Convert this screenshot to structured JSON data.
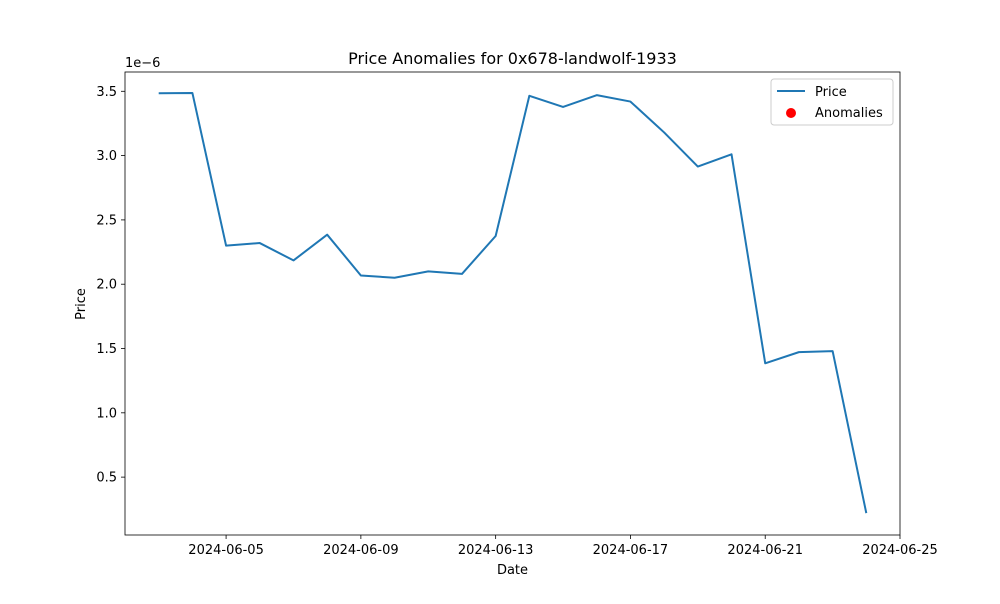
{
  "chart_data": {
    "type": "line",
    "title": "Price Anomalies for 0x678-landwolf-1933",
    "xlabel": "Date",
    "ylabel": "Price",
    "y_offset_label": "1e−6",
    "y_scale_factor": 1e-06,
    "ylim": [
      5e-08,
      3.65e-06
    ],
    "xlim": [
      "2024-06-02",
      "2024-06-25"
    ],
    "x_ticks": [
      "2024-06-05",
      "2024-06-09",
      "2024-06-13",
      "2024-06-17",
      "2024-06-21",
      "2024-06-25"
    ],
    "y_ticks": [
      "0.5",
      "1.0",
      "1.5",
      "2.0",
      "2.5",
      "3.0",
      "3.5"
    ],
    "grid": false,
    "legend_position": "top-right",
    "series": [
      {
        "name": "Price",
        "type": "line",
        "color": "#1f77b4",
        "x": [
          "2024-06-03",
          "2024-06-04",
          "2024-06-05",
          "2024-06-06",
          "2024-06-07",
          "2024-06-08",
          "2024-06-09",
          "2024-06-10",
          "2024-06-11",
          "2024-06-12",
          "2024-06-13",
          "2024-06-14",
          "2024-06-15",
          "2024-06-16",
          "2024-06-17",
          "2024-06-18",
          "2024-06-19",
          "2024-06-20",
          "2024-06-21",
          "2024-06-22",
          "2024-06-23",
          "2024-06-24"
        ],
        "y": [
          3.485e-06,
          3.487e-06,
          2.3e-06,
          2.32e-06,
          2.185e-06,
          2.385e-06,
          2.068e-06,
          2.05e-06,
          2.1e-06,
          2.08e-06,
          2.375e-06,
          3.465e-06,
          3.378e-06,
          3.47e-06,
          3.42e-06,
          3.18e-06,
          2.915e-06,
          3.01e-06,
          1.385e-06,
          1.472e-06,
          1.48e-06,
          2.2e-07
        ]
      },
      {
        "name": "Anomalies",
        "type": "scatter",
        "color": "#ff0000",
        "x": [],
        "y": []
      }
    ]
  }
}
